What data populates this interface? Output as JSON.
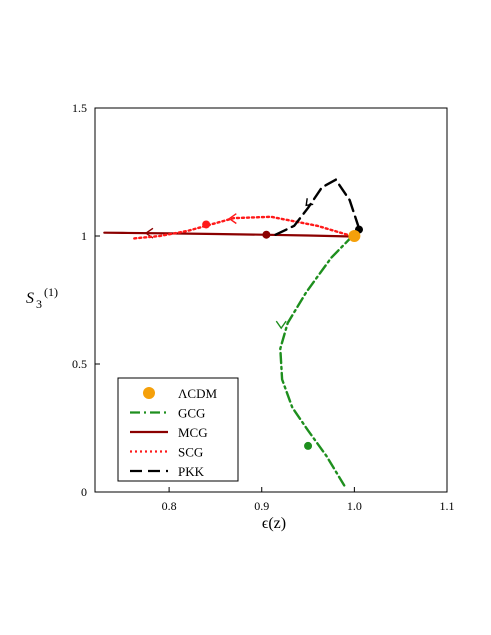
{
  "chart_data": {
    "type": "line",
    "xlabel": "ϵ(z)",
    "ylabel_main": "S",
    "ylabel_sub": "3",
    "ylabel_sup": "(1)",
    "xlim": [
      0.72,
      1.1
    ],
    "ylim": [
      0,
      1.5
    ],
    "xticks": [
      0.8,
      0.9,
      1.0,
      1.1
    ],
    "xtick_labels": [
      "0.8",
      "0.9",
      "1.0",
      "1.1"
    ],
    "yticks": [
      0,
      0.5,
      1,
      1.5
    ],
    "ytick_labels": [
      "0",
      "0.5",
      "1",
      "1.5"
    ],
    "grid": false,
    "legend_position": "bottom-left",
    "series": [
      {
        "name": "ΛCDM",
        "style": "point",
        "color": "#f5a00a",
        "points": [
          [
            1.0,
            1.0
          ]
        ]
      },
      {
        "name": "GCG",
        "style": "dashdot",
        "color": "#1e8f1e",
        "points": [
          [
            0.998,
            1.0
          ],
          [
            0.975,
            0.915
          ],
          [
            0.948,
            0.78
          ],
          [
            0.928,
            0.66
          ],
          [
            0.92,
            0.56
          ],
          [
            0.922,
            0.44
          ],
          [
            0.933,
            0.33
          ],
          [
            0.95,
            0.24
          ],
          [
            0.97,
            0.14
          ],
          [
            0.99,
            0.02
          ]
        ],
        "marker_points": [
          [
            0.95,
            0.18
          ]
        ],
        "arrows": [
          [
            0.921,
            0.64,
            "down"
          ]
        ]
      },
      {
        "name": "MCG",
        "style": "solid",
        "color": "#8b0000",
        "points": [
          [
            0.997,
            0.998
          ],
          [
            0.95,
            1.002
          ],
          [
            0.9,
            1.005
          ],
          [
            0.85,
            1.008
          ],
          [
            0.8,
            1.01
          ],
          [
            0.75,
            1.012
          ],
          [
            0.73,
            1.013
          ]
        ],
        "marker_points": [
          [
            0.905,
            1.005
          ]
        ],
        "arrows": [
          [
            0.775,
            1.011,
            "left"
          ]
        ]
      },
      {
        "name": "SCG",
        "style": "dotted",
        "color": "#ff1a1a",
        "points": [
          [
            0.997,
            1.0
          ],
          [
            0.96,
            1.04
          ],
          [
            0.91,
            1.075
          ],
          [
            0.87,
            1.07
          ],
          [
            0.845,
            1.045
          ],
          [
            0.82,
            1.02
          ],
          [
            0.79,
            1.0
          ],
          [
            0.76,
            0.99
          ]
        ],
        "marker_points": [
          [
            0.84,
            1.045
          ]
        ],
        "arrows": [
          [
            0.865,
            1.068,
            "left"
          ]
        ]
      },
      {
        "name": "PKK",
        "style": "dashed",
        "color": "#000000",
        "points": [
          [
            0.915,
            1.005
          ],
          [
            0.935,
            1.04
          ],
          [
            0.95,
            1.11
          ],
          [
            0.965,
            1.19
          ],
          [
            0.98,
            1.22
          ],
          [
            0.995,
            1.14
          ],
          [
            1.005,
            1.03
          ],
          [
            1.003,
            1.0
          ]
        ],
        "marker_points": [
          [
            1.005,
            1.025
          ]
        ],
        "arrows": [
          [
            0.948,
            1.12,
            "down-left"
          ]
        ]
      }
    ]
  }
}
